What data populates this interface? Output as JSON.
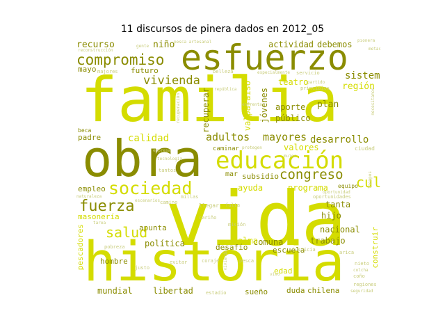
{
  "title": "11 discursos de pinera dados en 2012_05",
  "colors": {
    "lime": "#d4dc00",
    "olive": "#8a8c00",
    "light": "#c8cc7a"
  },
  "words": [
    {
      "text": "familia",
      "c": "lime"
    },
    {
      "text": "vida",
      "c": "lime"
    },
    {
      "text": "historia",
      "c": "lime"
    },
    {
      "text": "obra",
      "c": "olive"
    },
    {
      "text": "esfuerzo",
      "c": "olive"
    },
    {
      "text": "educación",
      "c": "lime"
    },
    {
      "text": "compromiso",
      "c": "olive"
    },
    {
      "text": "sociedad",
      "c": "lime"
    },
    {
      "text": "fuerza",
      "c": "olive"
    },
    {
      "text": "salud",
      "c": "lime"
    },
    {
      "text": "cultura",
      "c": "lime"
    },
    {
      "text": "congreso",
      "c": "olive"
    },
    {
      "text": "vivienda",
      "c": "olive"
    },
    {
      "text": "adultos",
      "c": "olive"
    },
    {
      "text": "mayores",
      "c": "olive"
    },
    {
      "text": "desarrollo",
      "c": "olive"
    },
    {
      "text": "calidad",
      "c": "lime"
    },
    {
      "text": "sistema",
      "c": "olive"
    },
    {
      "text": "recurso",
      "c": "olive"
    },
    {
      "text": "niño",
      "c": "olive"
    },
    {
      "text": "actividad",
      "c": "olive"
    },
    {
      "text": "debemos",
      "c": "olive"
    },
    {
      "text": "futuro",
      "c": "olive"
    },
    {
      "text": "mayo",
      "c": "olive"
    },
    {
      "text": "región",
      "c": "lime"
    },
    {
      "text": "plan",
      "c": "olive"
    },
    {
      "text": "aporte",
      "c": "olive"
    },
    {
      "text": "público",
      "c": "olive"
    },
    {
      "text": "jóvenes",
      "c": "olive"
    },
    {
      "text": "valparaíso",
      "c": "lime"
    },
    {
      "text": "recuperar",
      "c": "olive"
    },
    {
      "text": "teatro",
      "c": "lime"
    },
    {
      "text": "padre",
      "c": "olive"
    },
    {
      "text": "valores",
      "c": "lime"
    },
    {
      "text": "programa",
      "c": "lime"
    },
    {
      "text": "ayuda",
      "c": "lime"
    },
    {
      "text": "subsidio",
      "c": "olive"
    },
    {
      "text": "tanta",
      "c": "olive"
    },
    {
      "text": "hijo",
      "c": "olive"
    },
    {
      "text": "nacional",
      "c": "olive"
    },
    {
      "text": "trabajo",
      "c": "olive"
    },
    {
      "text": "comuna",
      "c": "olive"
    },
    {
      "text": "alma",
      "c": "lime"
    },
    {
      "text": "desafío",
      "c": "olive"
    },
    {
      "text": "escuela",
      "c": "olive"
    },
    {
      "text": "apunta",
      "c": "olive"
    },
    {
      "text": "política",
      "c": "olive"
    },
    {
      "text": "hombre",
      "c": "olive"
    },
    {
      "text": "mundial",
      "c": "olive"
    },
    {
      "text": "libertad",
      "c": "olive"
    },
    {
      "text": "sueño",
      "c": "olive"
    },
    {
      "text": "duda",
      "c": "olive"
    },
    {
      "text": "chilena",
      "c": "olive"
    },
    {
      "text": "edad",
      "c": "lime"
    },
    {
      "text": "empleo",
      "c": "olive"
    },
    {
      "text": "masonería",
      "c": "lime"
    },
    {
      "text": "pescadores",
      "c": "lime"
    },
    {
      "text": "construir",
      "c": "lime"
    },
    {
      "text": "caminar",
      "c": "olive"
    },
    {
      "text": "mar",
      "c": "olive"
    },
    {
      "text": "beca",
      "c": "olive"
    },
    {
      "text": "equipo",
      "c": "olive"
    },
    {
      "text": "ciudad",
      "c": "light"
    },
    {
      "text": "regiones",
      "c": "light"
    },
    {
      "text": "estadio",
      "c": "light"
    },
    {
      "text": "coraje",
      "c": "light"
    },
    {
      "text": "justicia",
      "c": "light"
    },
    {
      "text": "belleza",
      "c": "light"
    },
    {
      "text": "empresa",
      "c": "light"
    },
    {
      "text": "pesca artesanal",
      "c": "light"
    },
    {
      "text": "reconstrucción",
      "c": "light"
    },
    {
      "text": "majores",
      "c": "light"
    },
    {
      "text": "servicio",
      "c": "light"
    },
    {
      "text": "principios",
      "c": "light"
    },
    {
      "text": "especialmente",
      "c": "light"
    },
    {
      "text": "república",
      "c": "light"
    },
    {
      "text": "recuperación",
      "c": "light"
    },
    {
      "text": "oportunidades",
      "c": "light"
    },
    {
      "text": "naturaleza",
      "c": "light"
    },
    {
      "text": "tiempos",
      "c": "light"
    },
    {
      "text": "camino",
      "c": "light"
    },
    {
      "text": "llegar",
      "c": "light"
    },
    {
      "text": "falta",
      "c": "light"
    },
    {
      "text": "misión",
      "c": "light"
    },
    {
      "text": "evitar",
      "c": "light"
    },
    {
      "text": "cariño",
      "c": "light"
    },
    {
      "text": "pesca",
      "c": "light"
    },
    {
      "text": "pobreza",
      "c": "light"
    },
    {
      "text": "justo",
      "c": "light"
    },
    {
      "text": "arica",
      "c": "light"
    },
    {
      "text": "coño",
      "c": "light"
    },
    {
      "text": "viviendas",
      "c": "light"
    },
    {
      "text": "seguridad",
      "c": "light"
    },
    {
      "text": "oportunidad",
      "c": "light"
    },
    {
      "text": "metas",
      "c": "light"
    },
    {
      "text": "escenarios",
      "c": "light"
    },
    {
      "text": "millas",
      "c": "light"
    },
    {
      "text": "partido",
      "c": "light"
    },
    {
      "text": "nieto",
      "c": "light"
    },
    {
      "text": "colcha",
      "c": "light"
    },
    {
      "text": "tantos",
      "c": "light"
    },
    {
      "text": "mujer",
      "c": "light"
    },
    {
      "text": "vivo",
      "c": "light"
    },
    {
      "text": "gente",
      "c": "light"
    },
    {
      "text": "pionera",
      "c": "light"
    },
    {
      "text": "protegen",
      "c": "light"
    },
    {
      "text": "enfrentar",
      "c": "light"
    },
    {
      "text": "tarea",
      "c": "light"
    },
    {
      "text": "tecnología",
      "c": "light"
    },
    {
      "text": "necesitamos",
      "c": "light"
    }
  ]
}
